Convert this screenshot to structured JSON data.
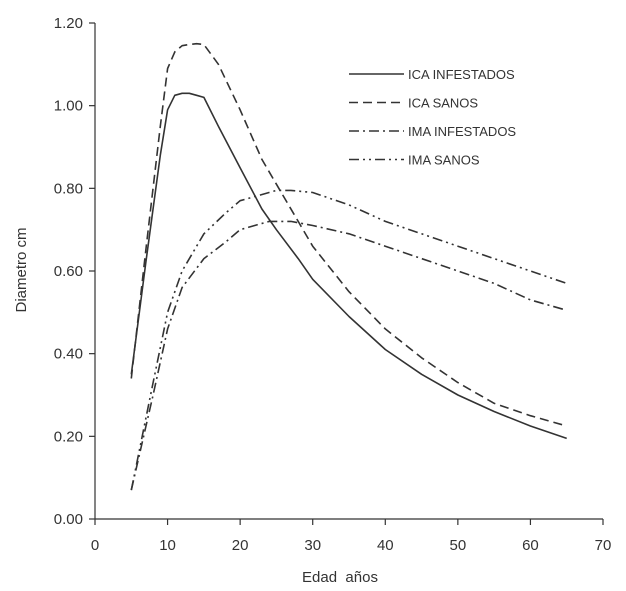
{
  "chart_data": {
    "type": "line",
    "title": "",
    "xlabel": "Edad  años",
    "ylabel": "Diametro cm",
    "xlim": [
      0,
      70
    ],
    "ylim": [
      0.0,
      1.2
    ],
    "x_ticks": [
      "0",
      "10",
      "20",
      "30",
      "40",
      "50",
      "60",
      "70"
    ],
    "y_ticks": [
      "0.00",
      "0.20",
      "0.40",
      "0.60",
      "0.80",
      "1.00",
      "1.20"
    ],
    "grid": false,
    "legend_position": "top-right",
    "series": [
      {
        "name": "ICA INFESTADOS",
        "style": "solid",
        "color": "#333333",
        "x": [
          5,
          7,
          9,
          10,
          11,
          12,
          13,
          14,
          15,
          17,
          20,
          23,
          25,
          28,
          30,
          35,
          40,
          45,
          50,
          55,
          60,
          65
        ],
        "y": [
          0.35,
          0.62,
          0.88,
          0.99,
          1.025,
          1.03,
          1.03,
          1.025,
          1.02,
          0.95,
          0.85,
          0.75,
          0.7,
          0.63,
          0.58,
          0.49,
          0.41,
          0.35,
          0.3,
          0.26,
          0.225,
          0.195
        ]
      },
      {
        "name": "ICA SANOS",
        "style": "dashed",
        "color": "#333333",
        "x": [
          5,
          7,
          9,
          10,
          11,
          12,
          13,
          14,
          15,
          17,
          20,
          23,
          25,
          28,
          30,
          35,
          40,
          45,
          50,
          55,
          60,
          65
        ],
        "y": [
          0.34,
          0.65,
          0.95,
          1.09,
          1.13,
          1.145,
          1.148,
          1.15,
          1.148,
          1.1,
          0.99,
          0.87,
          0.81,
          0.72,
          0.66,
          0.55,
          0.46,
          0.39,
          0.33,
          0.28,
          0.25,
          0.225
        ]
      },
      {
        "name": "IMA INFESTADOS",
        "style": "dashdot",
        "color": "#333333",
        "x": [
          5,
          8,
          10,
          12,
          15,
          18,
          20,
          22,
          24,
          25,
          27,
          30,
          35,
          40,
          45,
          50,
          55,
          60,
          65
        ],
        "y": [
          0.07,
          0.3,
          0.46,
          0.56,
          0.63,
          0.67,
          0.7,
          0.71,
          0.72,
          0.72,
          0.72,
          0.71,
          0.69,
          0.66,
          0.63,
          0.6,
          0.57,
          0.53,
          0.505
        ]
      },
      {
        "name": "IMA SANOS",
        "style": "dashdotdot",
        "color": "#333333",
        "x": [
          5,
          8,
          10,
          12,
          15,
          18,
          20,
          22,
          25,
          27,
          30,
          35,
          40,
          45,
          50,
          55,
          60,
          65
        ],
        "y": [
          0.07,
          0.33,
          0.5,
          0.6,
          0.69,
          0.74,
          0.77,
          0.78,
          0.795,
          0.795,
          0.79,
          0.76,
          0.72,
          0.69,
          0.66,
          0.63,
          0.6,
          0.57
        ]
      }
    ]
  }
}
